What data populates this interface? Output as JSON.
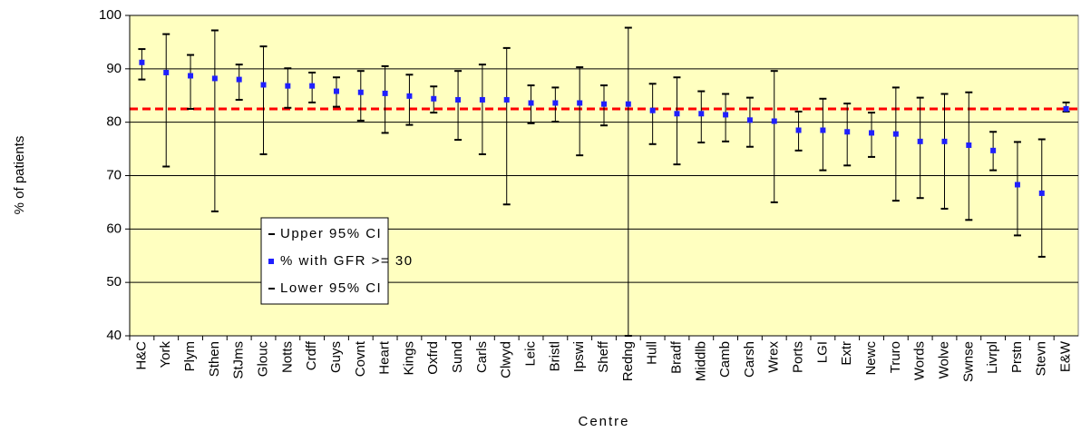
{
  "chart_data": {
    "type": "errorbar",
    "x_label": "Centre",
    "y_label": "% of patients",
    "categories": [
      "H&C",
      "York",
      "Plym",
      "Sthen",
      "StJms",
      "Glouc",
      "Notts",
      "Crdff",
      "Guys",
      "Covnt",
      "Heart",
      "Kings",
      "Oxfrd",
      "Sund",
      "Carls",
      "Clwyd",
      "Leic",
      "Bristl",
      "Ipswi",
      "Sheff",
      "Redng",
      "Hull",
      "Bradf",
      "Middlb",
      "Camb",
      "Carsh",
      "Wrex",
      "Ports",
      "LGI",
      "Extr",
      "Newc",
      "Truro",
      "Words",
      "Wolve",
      "Swnse",
      "Livrpl",
      "Prstn",
      "Stevn",
      "E&W"
    ],
    "series": [
      {
        "name": "Upper 95% CI",
        "color": "#000000",
        "values": [
          93.7,
          96.5,
          92.6,
          97.2,
          90.8,
          94.2,
          90.1,
          89.3,
          88.4,
          89.6,
          90.5,
          88.9,
          86.7,
          89.6,
          90.8,
          93.9,
          86.9,
          86.5,
          90.3,
          86.9,
          97.7,
          87.2,
          88.4,
          85.8,
          85.3,
          84.6,
          89.6,
          82,
          84.4,
          83.5,
          81.8,
          86.5,
          84.6,
          85.3,
          85.6,
          78.2,
          76.3,
          76.8,
          83.7
        ]
      },
      {
        "name": "% with GFR >= 30",
        "color": "#1f1fff",
        "values": [
          91.2,
          89.3,
          88.7,
          88.2,
          88,
          87,
          86.8,
          86.8,
          85.8,
          85.6,
          85.4,
          84.9,
          84.4,
          84.2,
          84.2,
          84.2,
          83.6,
          83.6,
          83.6,
          83.4,
          83.4,
          82.2,
          81.6,
          81.6,
          81.4,
          80.4,
          80.2,
          78.5,
          78.5,
          78.2,
          78,
          77.8,
          76.4,
          76.4,
          75.7,
          74.7,
          68.3,
          66.7,
          82.5
        ]
      },
      {
        "name": "Lower 95% CI",
        "color": "#000000",
        "values": [
          88,
          71.7,
          82.5,
          63.3,
          84.2,
          74,
          82.7,
          83.7,
          82.9,
          80.3,
          78,
          79.5,
          81.8,
          76.7,
          74,
          64.6,
          79.8,
          80.1,
          73.8,
          79.4,
          40,
          75.9,
          72.1,
          76.2,
          76.4,
          75.4,
          65,
          74.7,
          71,
          71.9,
          73.5,
          65.3,
          65.8,
          63.8,
          61.7,
          71,
          58.8,
          54.8,
          82
        ]
      }
    ],
    "reference_line": 82.5,
    "reference_color": "#ff0000",
    "ylim": [
      40,
      100
    ],
    "yticks": [
      40,
      50,
      60,
      70,
      80,
      90,
      100
    ],
    "grid": true,
    "plot_background": "#ffffc0"
  }
}
